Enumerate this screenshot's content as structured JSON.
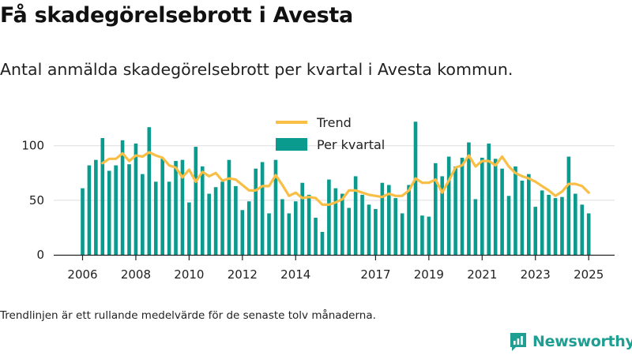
{
  "header": {
    "title": "Få skadegörelsebrott i Avesta",
    "subtitle": "Antal anmälda skadegörelsebrott per kvartal i Avesta kommun."
  },
  "footer": {
    "note": "Trendlinjen är ett rullande medelvärde för de senaste tolv månaderna.",
    "brand": "Newsworthy",
    "brand_icon": "newsworthy-logo-icon",
    "brand_color": "#1f9e92"
  },
  "colors": {
    "bar": "#0b9a8e",
    "trend": "#f9be45",
    "grid": "#dddddd",
    "axis": "#222222"
  },
  "chart_data": {
    "type": "bar",
    "title": "",
    "xlabel": "",
    "ylabel": "",
    "ylim": [
      0,
      125
    ],
    "y_ticks": [
      0,
      50,
      100
    ],
    "x_tick_labels": [
      "2006",
      "2008",
      "2010",
      "2012",
      "2014",
      "2017",
      "2019",
      "2021",
      "2023",
      "2025"
    ],
    "grid": "horizontal",
    "legend_placement": "top-center",
    "categories": [
      "2006 Q1",
      "2006 Q2",
      "2006 Q3",
      "2006 Q4",
      "2007 Q1",
      "2007 Q2",
      "2007 Q3",
      "2007 Q4",
      "2008 Q1",
      "2008 Q2",
      "2008 Q3",
      "2008 Q4",
      "2009 Q1",
      "2009 Q2",
      "2009 Q3",
      "2009 Q4",
      "2010 Q1",
      "2010 Q2",
      "2010 Q3",
      "2010 Q4",
      "2011 Q1",
      "2011 Q2",
      "2011 Q3",
      "2011 Q4",
      "2012 Q1",
      "2012 Q2",
      "2012 Q3",
      "2012 Q4",
      "2013 Q1",
      "2013 Q2",
      "2013 Q3",
      "2013 Q4",
      "2014 Q1",
      "2014 Q2",
      "2014 Q3",
      "2014 Q4",
      "2015 Q1",
      "2015 Q2",
      "2015 Q3",
      "2015 Q4",
      "2016 Q1",
      "2016 Q2",
      "2016 Q3",
      "2016 Q4",
      "2017 Q1",
      "2017 Q2",
      "2017 Q3",
      "2017 Q4",
      "2018 Q1",
      "2018 Q2",
      "2018 Q3",
      "2018 Q4",
      "2019 Q1",
      "2019 Q2",
      "2019 Q3",
      "2019 Q4",
      "2020 Q1",
      "2020 Q2",
      "2020 Q3",
      "2020 Q4",
      "2021 Q1",
      "2021 Q2",
      "2021 Q3",
      "2021 Q4",
      "2022 Q1",
      "2022 Q2",
      "2022 Q3",
      "2022 Q4",
      "2023 Q1",
      "2023 Q2",
      "2023 Q3",
      "2023 Q4",
      "2024 Q1",
      "2024 Q2",
      "2024 Q3",
      "2024 Q4",
      "2025 Q1"
    ],
    "series": [
      {
        "name": "Per kvartal",
        "type": "bar",
        "values": [
          61,
          82,
          87,
          107,
          77,
          82,
          105,
          83,
          102,
          74,
          117,
          67,
          88,
          67,
          86,
          87,
          48,
          99,
          81,
          56,
          62,
          67,
          87,
          63,
          41,
          49,
          79,
          85,
          38,
          87,
          51,
          38,
          49,
          66,
          55,
          34,
          21,
          69,
          61,
          56,
          43,
          72,
          55,
          46,
          42,
          66,
          64,
          52,
          38,
          64,
          122,
          36,
          35,
          84,
          72,
          90,
          81,
          89,
          103,
          51,
          89,
          102,
          88,
          79,
          54,
          81,
          68,
          74,
          44,
          59,
          55,
          52,
          53,
          90,
          56,
          46,
          38
        ]
      },
      {
        "name": "Trend",
        "type": "line",
        "values": [
          null,
          null,
          null,
          84,
          88,
          88,
          93,
          86,
          91,
          90,
          94,
          91,
          89,
          82,
          80,
          71,
          78,
          67,
          76,
          72,
          75,
          68,
          70,
          69,
          64,
          59,
          59,
          63,
          63,
          73,
          64,
          54,
          57,
          52,
          53,
          52,
          46,
          46,
          48,
          51,
          59,
          59,
          57,
          55,
          54,
          53,
          56,
          54,
          54,
          59,
          70,
          66,
          66,
          69,
          57,
          68,
          80,
          82,
          91,
          81,
          86,
          86,
          82,
          90,
          81,
          75,
          72,
          70,
          67,
          63,
          59,
          54,
          58,
          65,
          65,
          63,
          57
        ]
      }
    ]
  }
}
